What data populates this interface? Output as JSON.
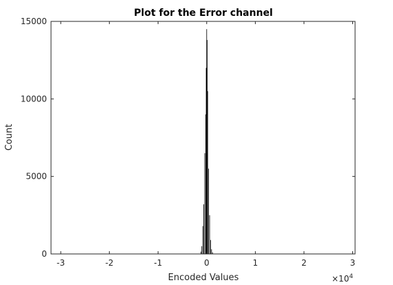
{
  "chart_data": {
    "type": "histogram",
    "title": "Plot for the Error channel",
    "xlabel": "Encoded Values",
    "ylabel": "Count",
    "x_exponent": "×10",
    "x_exponent_power": "4",
    "xlim": [
      -3.2,
      3.05
    ],
    "ylim": [
      0,
      15000
    ],
    "x_ticks": [
      -3,
      -2,
      -1,
      0,
      1,
      2,
      3
    ],
    "x_tick_labels": [
      "-3",
      "-2",
      "-1",
      "0",
      "1",
      "2",
      "3"
    ],
    "y_ticks": [
      0,
      5000,
      10000,
      15000
    ],
    "y_tick_labels": [
      "0",
      "5000",
      "10000",
      "15000"
    ],
    "grid": false,
    "bar_color": "#000000",
    "bins": [
      {
        "x": -0.12,
        "count": 150
      },
      {
        "x": -0.1,
        "count": 500
      },
      {
        "x": -0.08,
        "count": 1800
      },
      {
        "x": -0.06,
        "count": 3200
      },
      {
        "x": -0.04,
        "count": 6500
      },
      {
        "x": -0.02,
        "count": 9000
      },
      {
        "x": -0.01,
        "count": 12000
      },
      {
        "x": 0.0,
        "count": 14500
      },
      {
        "x": 0.01,
        "count": 13800
      },
      {
        "x": 0.02,
        "count": 10500
      },
      {
        "x": 0.04,
        "count": 5500
      },
      {
        "x": 0.06,
        "count": 2500
      },
      {
        "x": 0.08,
        "count": 900
      },
      {
        "x": 0.1,
        "count": 300
      },
      {
        "x": 0.12,
        "count": 100
      }
    ]
  }
}
